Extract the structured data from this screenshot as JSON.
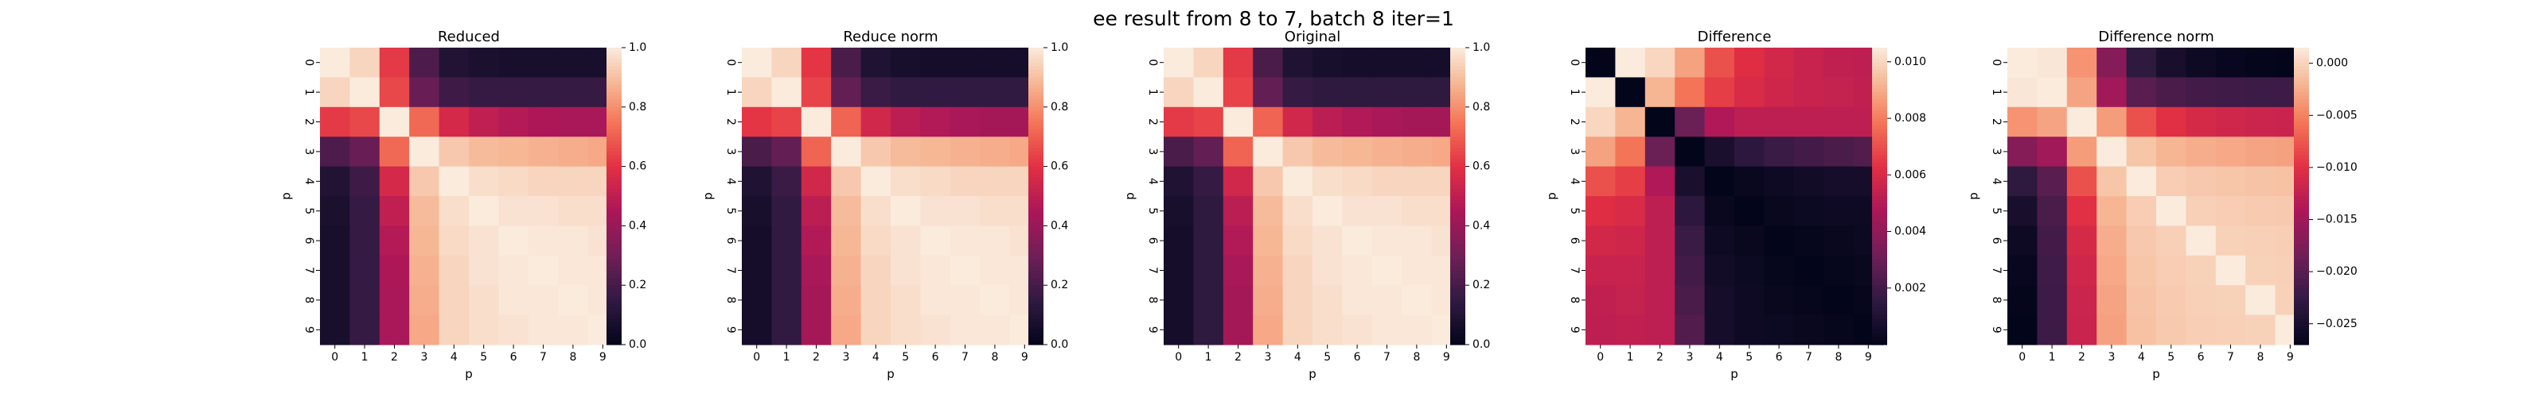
{
  "suptitle": "ee result from 8 to 7, batch 8 iter=1",
  "chart_data": [
    {
      "type": "heatmap",
      "title": "Reduced",
      "xlabel": "p",
      "ylabel": "p",
      "x": [
        "0",
        "1",
        "2",
        "3",
        "4",
        "5",
        "6",
        "7",
        "8",
        "9"
      ],
      "y": [
        "0",
        "1",
        "2",
        "3",
        "4",
        "5",
        "6",
        "7",
        "8",
        "9"
      ],
      "colormap": "rocket",
      "vmin": 0.0,
      "vmax": 1.0,
      "colorbar_ticks": [
        0.0,
        0.2,
        0.4,
        0.6,
        0.8,
        1.0
      ],
      "colorbar_labels": [
        "0.0",
        "0.2",
        "0.4",
        "0.6",
        "0.8",
        "1.0"
      ],
      "values": [
        [
          1.0,
          0.95,
          0.62,
          0.22,
          0.1,
          0.08,
          0.07,
          0.07,
          0.07,
          0.07
        ],
        [
          0.95,
          1.0,
          0.65,
          0.28,
          0.18,
          0.16,
          0.16,
          0.16,
          0.16,
          0.16
        ],
        [
          0.62,
          0.65,
          1.0,
          0.72,
          0.56,
          0.5,
          0.47,
          0.45,
          0.44,
          0.44
        ],
        [
          0.22,
          0.28,
          0.72,
          1.0,
          0.92,
          0.89,
          0.88,
          0.87,
          0.86,
          0.85
        ],
        [
          0.1,
          0.18,
          0.56,
          0.92,
          1.0,
          0.97,
          0.96,
          0.95,
          0.95,
          0.95
        ],
        [
          0.08,
          0.16,
          0.5,
          0.89,
          0.97,
          1.0,
          0.98,
          0.98,
          0.97,
          0.97
        ],
        [
          0.07,
          0.16,
          0.47,
          0.88,
          0.96,
          0.98,
          1.0,
          0.99,
          0.99,
          0.98
        ],
        [
          0.07,
          0.16,
          0.45,
          0.87,
          0.95,
          0.98,
          0.99,
          1.0,
          0.99,
          0.99
        ],
        [
          0.07,
          0.16,
          0.44,
          0.86,
          0.95,
          0.97,
          0.99,
          0.99,
          1.0,
          0.99
        ],
        [
          0.07,
          0.16,
          0.44,
          0.85,
          0.95,
          0.97,
          0.98,
          0.99,
          0.99,
          1.0
        ]
      ]
    },
    {
      "type": "heatmap",
      "title": "Reduce norm",
      "xlabel": "p",
      "ylabel": "p",
      "x": [
        "0",
        "1",
        "2",
        "3",
        "4",
        "5",
        "6",
        "7",
        "8",
        "9"
      ],
      "y": [
        "0",
        "1",
        "2",
        "3",
        "4",
        "5",
        "6",
        "7",
        "8",
        "9"
      ],
      "colormap": "rocket",
      "vmin": 0.0,
      "vmax": 1.0,
      "colorbar_ticks": [
        0.0,
        0.2,
        0.4,
        0.6,
        0.8,
        1.0
      ],
      "colorbar_labels": [
        "0.0",
        "0.2",
        "0.4",
        "0.6",
        "0.8",
        "1.0"
      ],
      "values": [
        [
          1.0,
          0.95,
          0.61,
          0.21,
          0.09,
          0.07,
          0.06,
          0.06,
          0.06,
          0.06
        ],
        [
          0.95,
          1.0,
          0.64,
          0.27,
          0.17,
          0.15,
          0.15,
          0.15,
          0.15,
          0.15
        ],
        [
          0.61,
          0.64,
          1.0,
          0.71,
          0.55,
          0.49,
          0.46,
          0.44,
          0.43,
          0.43
        ],
        [
          0.21,
          0.27,
          0.71,
          1.0,
          0.92,
          0.89,
          0.88,
          0.87,
          0.86,
          0.85
        ],
        [
          0.09,
          0.17,
          0.55,
          0.92,
          1.0,
          0.97,
          0.96,
          0.95,
          0.95,
          0.95
        ],
        [
          0.07,
          0.15,
          0.49,
          0.89,
          0.97,
          1.0,
          0.98,
          0.98,
          0.97,
          0.97
        ],
        [
          0.06,
          0.15,
          0.46,
          0.88,
          0.96,
          0.98,
          1.0,
          0.99,
          0.99,
          0.98
        ],
        [
          0.06,
          0.15,
          0.44,
          0.87,
          0.95,
          0.98,
          0.99,
          1.0,
          0.99,
          0.99
        ],
        [
          0.06,
          0.15,
          0.43,
          0.86,
          0.95,
          0.97,
          0.99,
          0.99,
          1.0,
          0.99
        ],
        [
          0.06,
          0.15,
          0.43,
          0.85,
          0.95,
          0.97,
          0.98,
          0.99,
          0.99,
          1.0
        ]
      ]
    },
    {
      "type": "heatmap",
      "title": "Original",
      "xlabel": "p",
      "ylabel": "p",
      "x": [
        "0",
        "1",
        "2",
        "3",
        "4",
        "5",
        "6",
        "7",
        "8",
        "9"
      ],
      "y": [
        "0",
        "1",
        "2",
        "3",
        "4",
        "5",
        "6",
        "7",
        "8",
        "9"
      ],
      "colormap": "rocket",
      "vmin": 0.0,
      "vmax": 1.0,
      "colorbar_ticks": [
        0.0,
        0.2,
        0.4,
        0.6,
        0.8,
        1.0
      ],
      "colorbar_labels": [
        "0.0",
        "0.2",
        "0.4",
        "0.6",
        "0.8",
        "1.0"
      ],
      "values": [
        [
          1.0,
          0.95,
          0.62,
          0.21,
          0.09,
          0.07,
          0.06,
          0.06,
          0.06,
          0.06
        ],
        [
          0.95,
          1.0,
          0.64,
          0.27,
          0.16,
          0.14,
          0.14,
          0.14,
          0.14,
          0.14
        ],
        [
          0.62,
          0.64,
          1.0,
          0.71,
          0.55,
          0.49,
          0.46,
          0.44,
          0.43,
          0.43
        ],
        [
          0.21,
          0.27,
          0.71,
          1.0,
          0.92,
          0.89,
          0.88,
          0.87,
          0.86,
          0.85
        ],
        [
          0.09,
          0.16,
          0.55,
          0.92,
          1.0,
          0.97,
          0.96,
          0.95,
          0.95,
          0.95
        ],
        [
          0.07,
          0.14,
          0.49,
          0.89,
          0.97,
          1.0,
          0.98,
          0.98,
          0.97,
          0.97
        ],
        [
          0.06,
          0.14,
          0.46,
          0.88,
          0.96,
          0.98,
          1.0,
          0.99,
          0.99,
          0.98
        ],
        [
          0.06,
          0.14,
          0.44,
          0.87,
          0.95,
          0.98,
          0.99,
          1.0,
          0.99,
          0.99
        ],
        [
          0.06,
          0.14,
          0.43,
          0.86,
          0.95,
          0.97,
          0.99,
          0.99,
          1.0,
          0.99
        ],
        [
          0.06,
          0.14,
          0.43,
          0.85,
          0.95,
          0.97,
          0.98,
          0.99,
          0.99,
          1.0
        ]
      ]
    },
    {
      "type": "heatmap",
      "title": "Difference",
      "xlabel": "p",
      "ylabel": "p",
      "x": [
        "0",
        "1",
        "2",
        "3",
        "4",
        "5",
        "6",
        "7",
        "8",
        "9"
      ],
      "y": [
        "0",
        "1",
        "2",
        "3",
        "4",
        "5",
        "6",
        "7",
        "8",
        "9"
      ],
      "colormap": "rocket",
      "vmin": 0.0,
      "vmax": 0.0105,
      "colorbar_ticks": [
        0.002,
        0.004,
        0.006,
        0.008,
        0.01
      ],
      "colorbar_labels": [
        "0.002",
        "0.004",
        "0.006",
        "0.008",
        "0.010"
      ],
      "values": [
        [
          0.0,
          0.0105,
          0.01,
          0.0088,
          0.007,
          0.0062,
          0.0058,
          0.0055,
          0.0053,
          0.0052
        ],
        [
          0.0105,
          0.0,
          0.0092,
          0.0078,
          0.0066,
          0.006,
          0.0057,
          0.0055,
          0.0054,
          0.0053
        ],
        [
          0.01,
          0.0092,
          0.0,
          0.003,
          0.0048,
          0.0052,
          0.0052,
          0.0052,
          0.0052,
          0.0052
        ],
        [
          0.0088,
          0.0078,
          0.003,
          0.0,
          0.0008,
          0.0014,
          0.0018,
          0.002,
          0.0022,
          0.0024
        ],
        [
          0.007,
          0.0066,
          0.0048,
          0.0008,
          0.0,
          0.0002,
          0.0004,
          0.0005,
          0.0006,
          0.0006
        ],
        [
          0.0062,
          0.006,
          0.0052,
          0.0014,
          0.0002,
          0.0,
          0.0002,
          0.0003,
          0.0004,
          0.0004
        ],
        [
          0.0058,
          0.0057,
          0.0052,
          0.0018,
          0.0004,
          0.0002,
          0.0,
          0.0001,
          0.0002,
          0.0003
        ],
        [
          0.0055,
          0.0055,
          0.0052,
          0.002,
          0.0005,
          0.0003,
          0.0001,
          0.0,
          0.0001,
          0.0002
        ],
        [
          0.0053,
          0.0054,
          0.0052,
          0.0022,
          0.0006,
          0.0004,
          0.0002,
          0.0001,
          0.0,
          0.0001
        ],
        [
          0.0052,
          0.0053,
          0.0052,
          0.0024,
          0.0006,
          0.0004,
          0.0003,
          0.0002,
          0.0001,
          0.0
        ]
      ]
    },
    {
      "type": "heatmap",
      "title": "Difference norm",
      "xlabel": "p",
      "ylabel": "p",
      "x": [
        "0",
        "1",
        "2",
        "3",
        "4",
        "5",
        "6",
        "7",
        "8",
        "9"
      ],
      "y": [
        "0",
        "1",
        "2",
        "3",
        "4",
        "5",
        "6",
        "7",
        "8",
        "9"
      ],
      "colormap": "rocket",
      "vmin": -0.027,
      "vmax": 0.0015,
      "colorbar_ticks": [
        -0.025,
        -0.02,
        -0.015,
        -0.01,
        -0.005,
        0.0
      ],
      "colorbar_labels": [
        "−0.025",
        "−0.020",
        "−0.015",
        "−0.010",
        "−0.005",
        "0.000"
      ],
      "values": [
        [
          0.0015,
          0.0012,
          -0.004,
          -0.017,
          -0.023,
          -0.025,
          -0.026,
          -0.0265,
          -0.0268,
          -0.027
        ],
        [
          0.0012,
          0.0015,
          -0.003,
          -0.015,
          -0.02,
          -0.021,
          -0.0215,
          -0.0218,
          -0.022,
          -0.022
        ],
        [
          -0.004,
          -0.003,
          0.0015,
          -0.0035,
          -0.008,
          -0.01,
          -0.011,
          -0.0115,
          -0.0118,
          -0.012
        ],
        [
          -0.017,
          -0.015,
          -0.0035,
          0.0015,
          -0.001,
          -0.002,
          -0.0025,
          -0.0028,
          -0.003,
          -0.0032
        ],
        [
          -0.023,
          -0.02,
          -0.008,
          -0.001,
          0.0015,
          -0.0005,
          -0.0008,
          -0.001,
          -0.0011,
          -0.0012
        ],
        [
          -0.025,
          -0.021,
          -0.01,
          -0.002,
          -0.0005,
          0.0015,
          -0.0003,
          -0.0005,
          -0.0006,
          -0.0007
        ],
        [
          -0.026,
          -0.0215,
          -0.011,
          -0.0025,
          -0.0008,
          -0.0003,
          0.0015,
          -0.0002,
          -0.0003,
          -0.0004
        ],
        [
          -0.0265,
          -0.0218,
          -0.0115,
          -0.0028,
          -0.001,
          -0.0005,
          -0.0002,
          0.0015,
          -0.0002,
          -0.0003
        ],
        [
          -0.0268,
          -0.022,
          -0.0118,
          -0.003,
          -0.0011,
          -0.0006,
          -0.0003,
          -0.0002,
          0.0015,
          -0.0002
        ],
        [
          -0.027,
          -0.022,
          -0.012,
          -0.0032,
          -0.0012,
          -0.0007,
          -0.0004,
          -0.0003,
          -0.0002,
          0.0015
        ]
      ]
    }
  ]
}
